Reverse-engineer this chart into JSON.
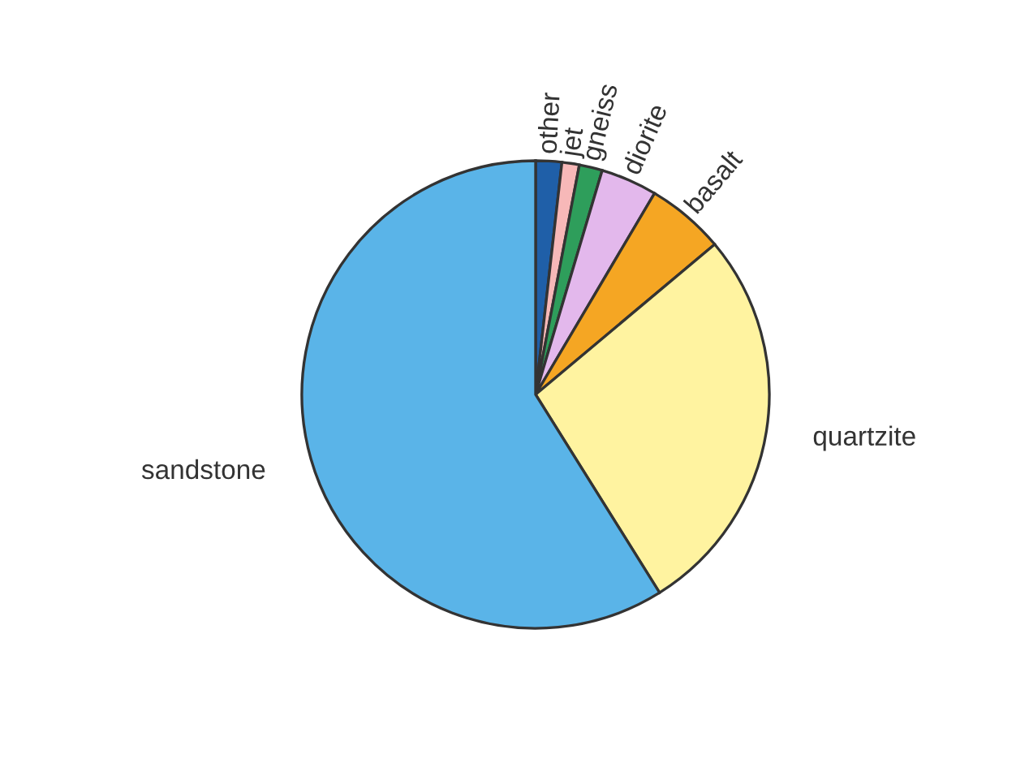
{
  "chart_data": {
    "type": "pie",
    "categories": [
      "other",
      "jet",
      "gneiss",
      "diorite",
      "basalt",
      "quartzite",
      "sandstone"
    ],
    "values": [
      1.8,
      1.2,
      1.6,
      3.9,
      5.4,
      27.2,
      58.9
    ],
    "colors": [
      "#1f5fa8",
      "#f7b8b8",
      "#2e9e5b",
      "#e3b8ec",
      "#f5a623",
      "#fff3a0",
      "#5ab4e8"
    ]
  }
}
